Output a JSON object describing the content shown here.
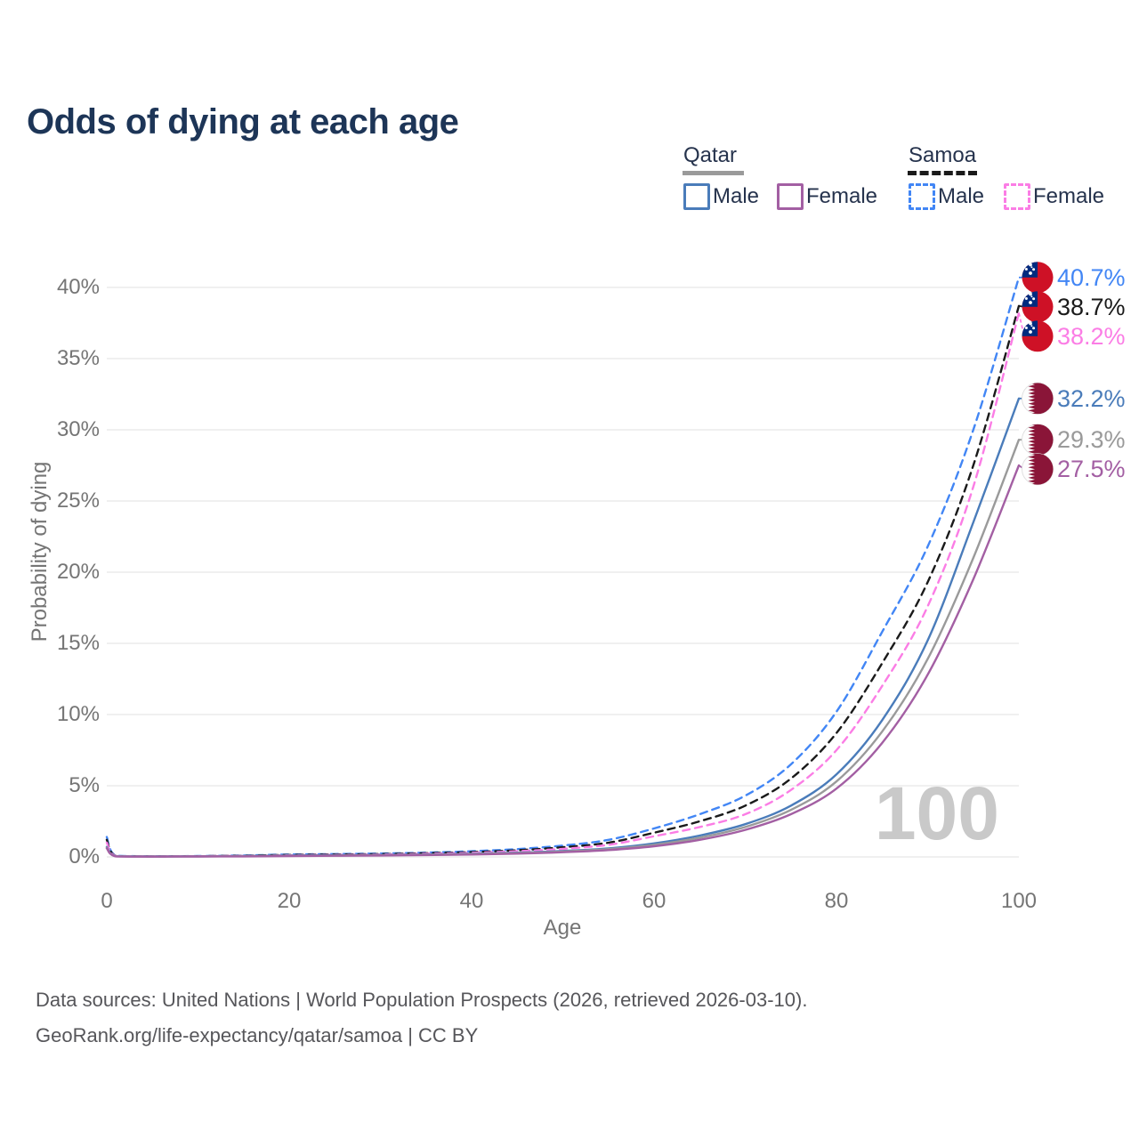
{
  "title": "Odds of dying at each age",
  "watermark": "100",
  "footer": {
    "line1": "Data sources: United Nations | World Population Prospects (2026, retrieved 2026-03-10).",
    "line2": "GeoRank.org/life-expectancy/qatar/samoa | CC BY"
  },
  "legend": {
    "groups": [
      {
        "name": "Qatar",
        "style": "solid",
        "line_color": "#9a9a9a",
        "items": [
          {
            "label": "Male",
            "color": "#4a7cba"
          },
          {
            "label": "Female",
            "color": "#a35fa3"
          }
        ]
      },
      {
        "name": "Samoa",
        "style": "dashed",
        "line_color": "#1a1a1a",
        "items": [
          {
            "label": "Male",
            "color": "#4286f5"
          },
          {
            "label": "Female",
            "color": "#fb7de5"
          }
        ]
      }
    ]
  },
  "chart_data": {
    "type": "line",
    "title": "Odds of dying at each age",
    "xlabel": "Age",
    "ylabel": "Probability of dying",
    "xlim": [
      0,
      100
    ],
    "ylim_percent": [
      0,
      42
    ],
    "grid": true,
    "legend_position": "top-right",
    "x_ticks": [
      0,
      20,
      40,
      60,
      80,
      100
    ],
    "y_ticks": [
      "0%",
      "5%",
      "10%",
      "15%",
      "20%",
      "25%",
      "30%",
      "35%",
      "40%"
    ],
    "ages": [
      0,
      1,
      5,
      10,
      15,
      20,
      25,
      30,
      35,
      40,
      45,
      50,
      55,
      60,
      65,
      70,
      75,
      80,
      85,
      90,
      95,
      100
    ],
    "series": [
      {
        "name": "Samoa Male",
        "country": "Samoa",
        "sex": "male",
        "color": "#4286f5",
        "dash": true,
        "end_label": "40.7%",
        "end_value_percent": 40.7,
        "values_percent": [
          1.4,
          0.08,
          0.05,
          0.06,
          0.1,
          0.17,
          0.2,
          0.24,
          0.3,
          0.4,
          0.55,
          0.8,
          1.2,
          2.0,
          3.0,
          4.3,
          6.5,
          10.2,
          15.8,
          21.8,
          30.0,
          40.7
        ]
      },
      {
        "name": "Samoa Both sexes",
        "country": "Samoa",
        "sex": "total",
        "color": "#1a1a1a",
        "dash": true,
        "end_label": "38.7%",
        "end_value_percent": 38.7,
        "values_percent": [
          1.2,
          0.07,
          0.04,
          0.05,
          0.09,
          0.14,
          0.17,
          0.2,
          0.26,
          0.34,
          0.47,
          0.68,
          1.0,
          1.7,
          2.5,
          3.6,
          5.5,
          8.7,
          13.6,
          19.3,
          27.5,
          38.7
        ]
      },
      {
        "name": "Samoa Female",
        "country": "Samoa",
        "sex": "female",
        "color": "#fb7de5",
        "dash": true,
        "end_label": "38.2%",
        "end_value_percent": 38.2,
        "values_percent": [
          1.0,
          0.06,
          0.04,
          0.05,
          0.07,
          0.11,
          0.14,
          0.17,
          0.22,
          0.29,
          0.4,
          0.57,
          0.85,
          1.45,
          2.1,
          3.0,
          4.7,
          7.5,
          12.0,
          17.6,
          26.0,
          38.2
        ]
      },
      {
        "name": "Qatar Male",
        "country": "Qatar",
        "sex": "male",
        "color": "#4a7cba",
        "dash": false,
        "end_label": "32.2%",
        "end_value_percent": 32.2,
        "values_percent": [
          0.7,
          0.05,
          0.03,
          0.04,
          0.06,
          0.1,
          0.12,
          0.14,
          0.17,
          0.22,
          0.3,
          0.42,
          0.6,
          0.95,
          1.5,
          2.3,
          3.6,
          5.8,
          9.6,
          15.2,
          23.5,
          32.2
        ]
      },
      {
        "name": "Qatar Both sexes",
        "country": "Qatar",
        "sex": "total",
        "color": "#9a9a9a",
        "dash": false,
        "end_label": "29.3%",
        "end_value_percent": 29.3,
        "values_percent": [
          0.65,
          0.05,
          0.03,
          0.04,
          0.05,
          0.08,
          0.1,
          0.12,
          0.15,
          0.2,
          0.27,
          0.38,
          0.55,
          0.85,
          1.35,
          2.1,
          3.3,
          5.3,
          8.8,
          13.9,
          21.0,
          29.3
        ]
      },
      {
        "name": "Qatar Female",
        "country": "Qatar",
        "sex": "female",
        "color": "#a35fa3",
        "dash": false,
        "end_label": "27.5%",
        "end_value_percent": 27.5,
        "values_percent": [
          0.6,
          0.04,
          0.02,
          0.03,
          0.04,
          0.06,
          0.08,
          0.1,
          0.13,
          0.17,
          0.23,
          0.33,
          0.48,
          0.75,
          1.2,
          1.9,
          3.0,
          4.8,
          8.0,
          12.8,
          19.5,
          27.5
        ]
      }
    ],
    "flag_colors": {
      "samoa_red": "#ce1126",
      "samoa_blue": "#002b7f",
      "qatar_maroon": "#8a1538",
      "qatar_white": "#fdfdfd"
    }
  }
}
